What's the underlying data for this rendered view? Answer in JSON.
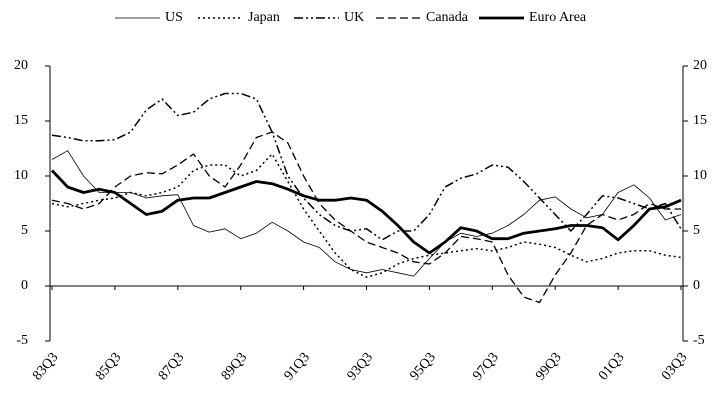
{
  "chart_data": {
    "type": "line",
    "categories": [
      "83Q3",
      null,
      null,
      null,
      "85Q3",
      null,
      null,
      null,
      "87Q3",
      null,
      null,
      null,
      "89Q3",
      null,
      null,
      null,
      "91Q3",
      null,
      null,
      null,
      "93Q3",
      null,
      null,
      null,
      "95Q3",
      null,
      null,
      null,
      "97Q3",
      null,
      null,
      null,
      "99Q3",
      null,
      null,
      null,
      "01Q3",
      null,
      null,
      null,
      "03Q3"
    ],
    "series": [
      {
        "name": "US",
        "color": "#000000",
        "linestyle": "solid",
        "linewidth": 0.8,
        "values": [
          11.5,
          12.3,
          10,
          8.5,
          8.5,
          8.5,
          8,
          8.2,
          8.3,
          5.5,
          4.9,
          5.2,
          4.3,
          4.8,
          5.8,
          5,
          4,
          3.5,
          2.2,
          1.5,
          1.2,
          1.5,
          1.2,
          0.9,
          2.5,
          4,
          4.8,
          4.5,
          4.8,
          5.5,
          6.5,
          7.8,
          8.1,
          7,
          6.2,
          6.5,
          8.5,
          9.2,
          8,
          6,
          6.5
        ]
      },
      {
        "name": "Japan",
        "color": "#000000",
        "linestyle": "dotted",
        "linewidth": 1.5,
        "values": [
          7.5,
          7.2,
          7.5,
          7.8,
          8,
          8.5,
          8.2,
          8.5,
          9,
          10.5,
          11,
          11,
          10,
          10.5,
          12,
          9.5,
          7,
          5,
          3,
          1.5,
          0.8,
          1.2,
          2,
          2.5,
          2.8,
          3,
          3.2,
          3.4,
          3.2,
          3.5,
          4,
          3.8,
          3.5,
          2.8,
          2.2,
          2.5,
          3,
          3.2,
          3.2,
          2.8,
          2.6
        ]
      },
      {
        "name": "UK",
        "color": "#000000",
        "linestyle": "dash-dot",
        "linewidth": 1.5,
        "values": [
          13.7,
          13.5,
          13.2,
          13.2,
          13.3,
          14,
          16,
          17,
          15.5,
          15.8,
          17,
          17.5,
          17.5,
          17,
          14,
          10,
          8,
          6.5,
          5.5,
          5,
          5.2,
          4.2,
          5,
          5,
          6.5,
          9,
          9.8,
          10.2,
          11,
          10.8,
          9.5,
          8,
          6.5,
          5,
          6.5,
          8.2,
          8,
          7.5,
          7,
          7.5,
          5.2
        ]
      },
      {
        "name": "Canada",
        "color": "#000000",
        "linestyle": "dashed",
        "linewidth": 1.3,
        "values": [
          7.8,
          7.5,
          7,
          7.5,
          9,
          10,
          10.3,
          10.2,
          11,
          12,
          10,
          9,
          11,
          13.5,
          14,
          13,
          10,
          7.5,
          6,
          5,
          4,
          3.5,
          3,
          2.2,
          2,
          3,
          4.5,
          4.3,
          4,
          1,
          -1,
          -1.5,
          1,
          3,
          5.5,
          6.5,
          6,
          6.5,
          7.5,
          7,
          7
        ]
      },
      {
        "name": "Euro Area",
        "color": "#000000",
        "linestyle": "solid",
        "linewidth": 2.8,
        "values": [
          10.5,
          9,
          8.5,
          8.8,
          8.5,
          7.5,
          6.5,
          6.8,
          7.8,
          8,
          8,
          8.5,
          9,
          9.5,
          9.3,
          8.8,
          8.2,
          7.8,
          7.8,
          8,
          7.8,
          6.8,
          5.5,
          4,
          3,
          4,
          5.3,
          5,
          4.3,
          4.3,
          4.8,
          5,
          5.2,
          5.5,
          5.5,
          5.3,
          4.2,
          5.5,
          7,
          7.2,
          7.8
        ]
      }
    ],
    "ylim": [
      -5,
      20
    ],
    "yticks": [
      -5,
      0,
      5,
      10,
      15,
      20
    ],
    "y2lim": [
      -5,
      20
    ],
    "y2ticks": [
      -5,
      0,
      5,
      10,
      15,
      20
    ],
    "legend": "top"
  }
}
